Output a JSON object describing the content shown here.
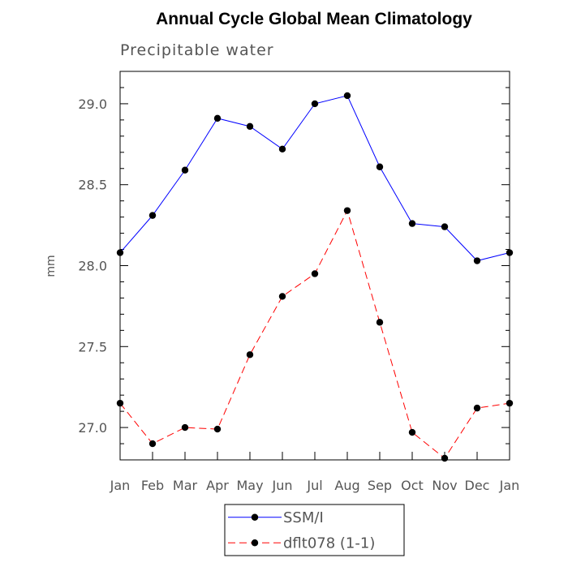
{
  "chart_data": {
    "type": "line",
    "title": "Annual Cycle Global Mean Climatology",
    "subtitle": "Precipitable water",
    "xlabel": "",
    "ylabel": "mm",
    "categories": [
      "Jan",
      "Feb",
      "Mar",
      "Apr",
      "May",
      "Jun",
      "Jul",
      "Aug",
      "Sep",
      "Oct",
      "Nov",
      "Dec",
      "Jan"
    ],
    "ylim": [
      26.8,
      29.2
    ],
    "yticks": [
      27.0,
      27.5,
      28.0,
      28.5,
      29.0
    ],
    "ytick_labels": [
      "27.0",
      "27.5",
      "28.0",
      "28.5",
      "29.0"
    ],
    "series": [
      {
        "name": "SSM/I",
        "color": "#0000ff",
        "dash": "solid",
        "marker": "filled-circle",
        "values": [
          28.08,
          28.31,
          28.59,
          28.91,
          28.86,
          28.72,
          29.0,
          29.05,
          28.61,
          28.26,
          28.24,
          28.03,
          28.08
        ]
      },
      {
        "name": "dflt078 (1-1)",
        "color": "#ff0000",
        "dash": "dashed",
        "marker": "filled-circle",
        "values": [
          27.15,
          26.9,
          27.0,
          26.99,
          27.45,
          27.81,
          27.95,
          28.34,
          27.65,
          26.97,
          26.81,
          27.12,
          27.15
        ]
      }
    ],
    "grid": false,
    "legend_position": "bottom-center"
  }
}
